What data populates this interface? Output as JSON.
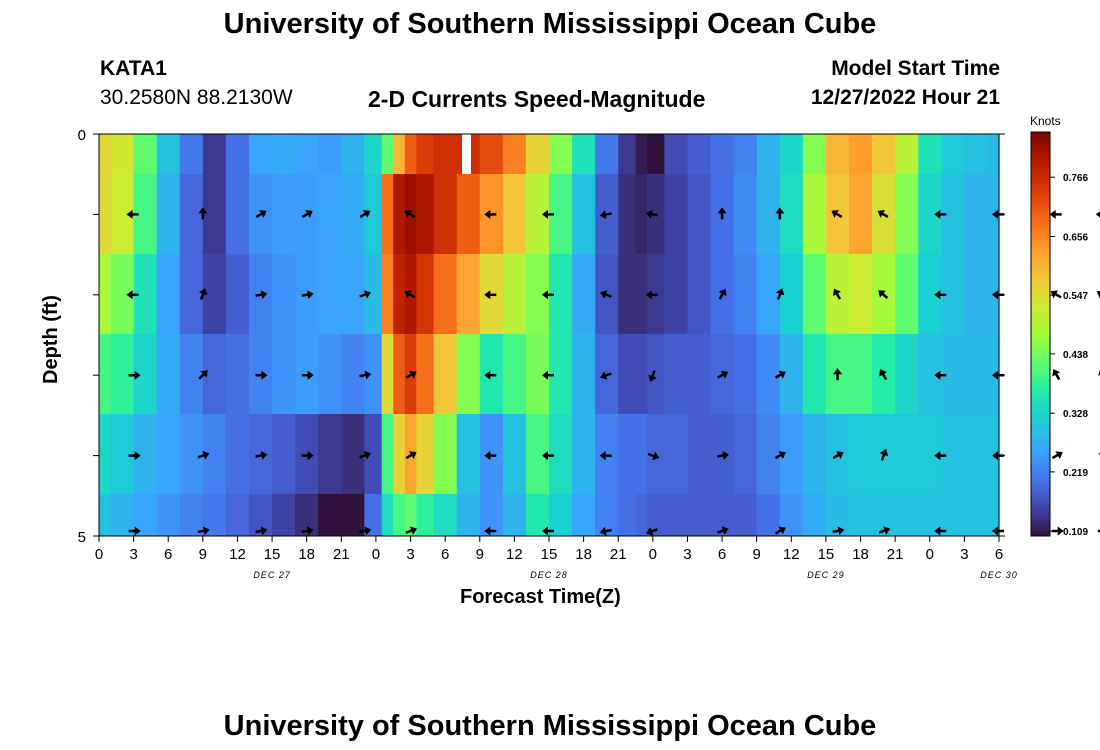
{
  "page": {
    "title": "University of Southern Mississippi Ocean Cube",
    "title_repeat": "University of Southern Mississippi Ocean Cube",
    "station_id": "KATA1",
    "coordinates": "30.2580N  88.2130W",
    "model_start_label": "Model Start Time",
    "model_start_value": "12/27/2022 Hour 21"
  },
  "chart_data": {
    "type": "heatmap",
    "title": "2-D Currents Speed-Magnitude",
    "xlabel": "Forecast Time(Z)",
    "ylabel": "Depth (ft)",
    "ylim": [
      0,
      5
    ],
    "y_ticks": [
      "0",
      "5"
    ],
    "x_hour_ticks": [
      "0",
      "3",
      "6",
      "9",
      "12",
      "15",
      "18",
      "21",
      "0",
      "3",
      "6",
      "9",
      "12",
      "15",
      "18",
      "21",
      "0",
      "3",
      "6",
      "9",
      "12",
      "15",
      "18",
      "21",
      "0",
      "3",
      "6"
    ],
    "date_labels": [
      {
        "label": "DEC 27",
        "hour": 15
      },
      {
        "label": "DEC 28",
        "hour": 39
      },
      {
        "label": "DEC 29",
        "hour": 63
      },
      {
        "label": "DEC 30",
        "hour": 78
      }
    ],
    "colorbar": {
      "unit": "Knots",
      "range": [
        0.1,
        0.85
      ],
      "ticks": [
        "0.766",
        "0.656",
        "0.547",
        "0.438",
        "0.328",
        "0.219",
        "0.109"
      ]
    },
    "depth_layers": 5,
    "time_points": [
      0,
      2,
      4,
      6,
      8,
      10,
      12,
      14,
      16,
      18,
      20,
      22,
      24,
      25,
      26,
      27,
      28,
      30,
      32,
      34,
      36,
      38,
      40,
      42,
      44,
      46,
      47,
      48,
      50,
      52,
      54,
      56,
      58,
      60,
      62,
      64,
      66,
      68,
      70,
      72,
      74,
      76,
      78
    ],
    "speed_knots": [
      [
        0.55,
        0.53,
        0.42,
        0.3,
        0.21,
        0.14,
        0.2,
        0.26,
        0.27,
        0.26,
        0.25,
        0.28,
        0.33,
        0.42,
        0.6,
        0.7,
        0.74,
        0.76,
        0.76,
        0.72,
        0.66,
        0.56,
        0.45,
        0.35,
        0.21,
        0.14,
        0.11,
        0.09,
        0.16,
        0.18,
        0.2,
        0.22,
        0.28,
        0.33,
        0.45,
        0.6,
        0.63,
        0.58,
        0.5,
        0.35,
        0.31,
        0.3,
        0.29
      ],
      [
        0.55,
        0.52,
        0.4,
        0.28,
        0.19,
        0.14,
        0.2,
        0.24,
        0.25,
        0.25,
        0.26,
        0.27,
        0.31,
        0.68,
        0.8,
        0.82,
        0.8,
        0.76,
        0.7,
        0.64,
        0.58,
        0.5,
        0.4,
        0.3,
        0.18,
        0.13,
        0.12,
        0.13,
        0.15,
        0.17,
        0.2,
        0.23,
        0.28,
        0.34,
        0.48,
        0.58,
        0.62,
        0.54,
        0.45,
        0.33,
        0.3,
        0.28,
        0.28
      ],
      [
        0.48,
        0.44,
        0.35,
        0.26,
        0.19,
        0.15,
        0.18,
        0.22,
        0.24,
        0.25,
        0.26,
        0.26,
        0.29,
        0.66,
        0.78,
        0.8,
        0.75,
        0.68,
        0.62,
        0.55,
        0.5,
        0.45,
        0.36,
        0.27,
        0.17,
        0.13,
        0.13,
        0.14,
        0.15,
        0.17,
        0.2,
        0.22,
        0.26,
        0.32,
        0.42,
        0.5,
        0.52,
        0.48,
        0.42,
        0.32,
        0.3,
        0.28,
        0.28
      ],
      [
        0.4,
        0.38,
        0.33,
        0.27,
        0.22,
        0.19,
        0.2,
        0.22,
        0.24,
        0.25,
        0.24,
        0.22,
        0.24,
        0.55,
        0.7,
        0.74,
        0.68,
        0.58,
        0.45,
        0.36,
        0.4,
        0.44,
        0.36,
        0.28,
        0.19,
        0.16,
        0.16,
        0.17,
        0.18,
        0.18,
        0.19,
        0.2,
        0.23,
        0.28,
        0.36,
        0.4,
        0.4,
        0.37,
        0.33,
        0.3,
        0.29,
        0.29,
        0.29
      ],
      [
        0.33,
        0.31,
        0.28,
        0.26,
        0.24,
        0.22,
        0.2,
        0.19,
        0.18,
        0.16,
        0.14,
        0.13,
        0.16,
        0.4,
        0.56,
        0.62,
        0.56,
        0.45,
        0.3,
        0.24,
        0.3,
        0.4,
        0.34,
        0.28,
        0.22,
        0.2,
        0.2,
        0.19,
        0.19,
        0.18,
        0.18,
        0.19,
        0.22,
        0.25,
        0.28,
        0.3,
        0.31,
        0.31,
        0.31,
        0.31,
        0.3,
        0.3,
        0.3
      ],
      [
        0.3,
        0.28,
        0.26,
        0.24,
        0.22,
        0.21,
        0.19,
        0.17,
        0.15,
        0.13,
        0.1,
        0.07,
        0.2,
        0.34,
        0.4,
        0.42,
        0.38,
        0.34,
        0.28,
        0.24,
        0.28,
        0.36,
        0.32,
        0.26,
        0.22,
        0.2,
        0.19,
        0.18,
        0.18,
        0.18,
        0.18,
        0.18,
        0.2,
        0.24,
        0.27,
        0.29,
        0.3,
        0.3,
        0.3,
        0.3,
        0.3,
        0.3,
        0.3
      ]
    ],
    "vector_rows": [
      {
        "depth": 1,
        "hours": [
          3,
          9,
          14,
          18,
          23,
          27,
          34,
          39,
          44,
          48,
          54,
          59,
          64,
          68,
          73,
          78,
          83,
          87
        ],
        "directions_deg": [
          270,
          0,
          60,
          60,
          60,
          300,
          270,
          270,
          260,
          280,
          0,
          0,
          300,
          300,
          270,
          270,
          270,
          270
        ]
      },
      {
        "depth": 2,
        "hours": [
          3,
          9,
          14,
          18,
          23,
          27,
          34,
          39,
          44,
          48,
          54,
          59,
          64,
          68,
          73,
          78,
          83,
          87
        ],
        "directions_deg": [
          270,
          20,
          80,
          80,
          70,
          300,
          270,
          270,
          290,
          270,
          30,
          20,
          330,
          310,
          270,
          270,
          300,
          300
        ]
      },
      {
        "depth": 3,
        "hours": [
          3,
          9,
          14,
          18,
          23,
          27,
          34,
          39,
          44,
          48,
          54,
          59,
          64,
          68,
          73,
          78,
          83,
          87
        ],
        "directions_deg": [
          90,
          45,
          90,
          90,
          80,
          60,
          270,
          270,
          250,
          200,
          60,
          60,
          0,
          330,
          270,
          270,
          330,
          340
        ]
      },
      {
        "depth": 4,
        "hours": [
          3,
          9,
          14,
          18,
          23,
          27,
          34,
          39,
          44,
          48,
          54,
          59,
          64,
          68,
          73,
          78,
          83,
          87
        ],
        "directions_deg": [
          90,
          70,
          80,
          90,
          70,
          60,
          270,
          270,
          270,
          110,
          80,
          60,
          60,
          20,
          270,
          270,
          60,
          0
        ]
      },
      {
        "depth": 5,
        "hours": [
          3,
          9,
          14,
          18,
          23,
          27,
          34,
          39,
          44,
          48,
          54,
          59,
          64,
          68,
          73,
          78,
          83,
          87
        ],
        "directions_deg": [
          90,
          80,
          80,
          80,
          80,
          70,
          270,
          270,
          260,
          250,
          70,
          60,
          80,
          70,
          270,
          270,
          90,
          90
        ]
      }
    ]
  }
}
